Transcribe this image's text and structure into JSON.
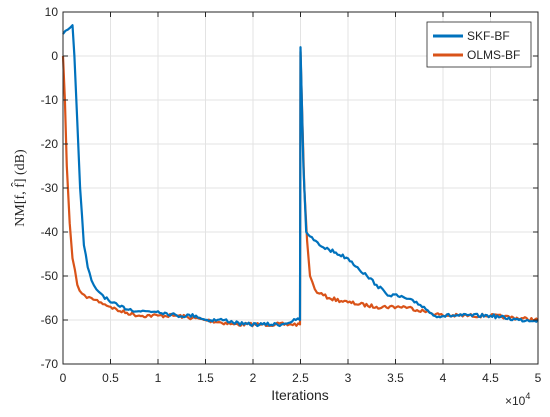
{
  "chart_data": {
    "type": "line",
    "xlabel": "Iterations",
    "ylabel": "NM[f, f̂] (dB)",
    "x_exponent_label": "×10",
    "x_exponent_power": "4",
    "xlim": [
      0,
      50000
    ],
    "ylim": [
      -70,
      10
    ],
    "x_ticks": [
      0,
      5000,
      10000,
      15000,
      20000,
      25000,
      30000,
      35000,
      40000,
      45000,
      50000
    ],
    "x_tick_labels": [
      "0",
      "0.5",
      "1",
      "1.5",
      "2",
      "2.5",
      "3",
      "3.5",
      "4",
      "4.5",
      "5"
    ],
    "y_ticks": [
      10,
      0,
      -10,
      -20,
      -30,
      -40,
      -50,
      -60,
      -70
    ],
    "y_tick_labels": [
      "10",
      "0",
      "-10",
      "-20",
      "-30",
      "-40",
      "-50",
      "-60",
      "-70"
    ],
    "grid": true,
    "legend_position": "top-right",
    "series": [
      {
        "name": "SKF-BF",
        "color": "#0072BD",
        "x": [
          0,
          500,
          1000,
          1200,
          1500,
          1800,
          2200,
          2600,
          3000,
          3500,
          4000,
          5000,
          6000,
          8000,
          10000,
          12000,
          14000,
          15000,
          17000,
          19000,
          21000,
          23000,
          24500,
          24950,
          25000,
          25300,
          25600,
          26000,
          27000,
          28000,
          30000,
          31000,
          32000,
          33000,
          34000,
          36000,
          37000,
          38000,
          39000,
          42000,
          45000,
          48000,
          50000
        ],
        "y": [
          5,
          6,
          7,
          0,
          -15,
          -30,
          -43,
          -48,
          -51,
          -53,
          -54,
          -56,
          -57,
          -58,
          -58,
          -59,
          -59,
          -60,
          -60,
          -61,
          -61,
          -61,
          -60,
          -60,
          2,
          -25,
          -40,
          -41,
          -43,
          -44,
          -46,
          -48,
          -50,
          -52,
          -54,
          -55,
          -56,
          -57,
          -59,
          -59,
          -59,
          -60,
          -60
        ]
      },
      {
        "name": "OLMS-BF",
        "color": "#D95319",
        "x": [
          0,
          200,
          400,
          700,
          1000,
          1500,
          2000,
          2500,
          3000,
          4000,
          5000,
          6000,
          8000,
          10000,
          12000,
          15000,
          18000,
          21000,
          24000,
          24950,
          25000,
          25200,
          25400,
          25700,
          26000,
          26500,
          27000,
          28000,
          30000,
          33000,
          36000,
          38000,
          40000,
          45000,
          50000
        ],
        "y": [
          0,
          -10,
          -25,
          -38,
          -46,
          -52,
          -54,
          -55,
          -55,
          -56,
          -57,
          -58,
          -59,
          -59,
          -59,
          -60,
          -61,
          -61,
          -61,
          -61,
          1,
          -15,
          -30,
          -42,
          -50,
          -53,
          -54,
          -55,
          -56,
          -57,
          -57,
          -58,
          -59,
          -59,
          -60
        ]
      }
    ]
  }
}
